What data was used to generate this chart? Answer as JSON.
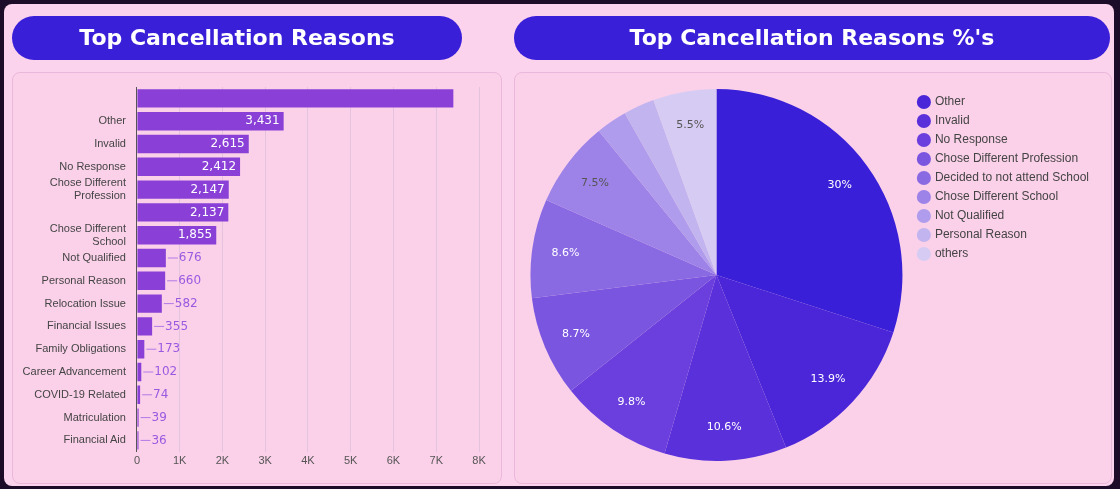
{
  "chart_data": [
    {
      "type": "bar",
      "title": "Top Cancellation Reasons",
      "orientation": "horizontal",
      "categories": [
        null,
        "Other",
        "Invalid",
        "No Response",
        "Chose Different Profession",
        null,
        "Chose Different School",
        "Not Qualified",
        "Personal Reason",
        "Relocation Issue",
        "Financial Issues",
        "Family Obligations",
        "Career Advancement",
        "COVID-19 Related",
        "Matriculation",
        "Financial Aid"
      ],
      "values": [
        7400,
        3431,
        2615,
        2412,
        2147,
        2137,
        1855,
        676,
        660,
        582,
        355,
        173,
        102,
        74,
        39,
        36
      ],
      "value_labels": [
        null,
        "3,431",
        "2,615",
        "2,412",
        "2,147",
        "2,137",
        "1,855",
        "676",
        "660",
        "582",
        "355",
        "173",
        "102",
        "74",
        "39",
        "36"
      ],
      "color": "#8a3fd6",
      "xlim": [
        0,
        8000
      ],
      "xticks": [
        0,
        {
          "value": 1000,
          "label": "1K"
        },
        {
          "value": 2000,
          "label": "2K"
        },
        {
          "value": 3000,
          "label": "3K"
        },
        {
          "value": 4000,
          "label": "4K"
        },
        {
          "value": 5000,
          "label": "5K"
        },
        {
          "value": 6000,
          "label": "6K"
        },
        {
          "value": 7000,
          "label": "7K"
        },
        {
          "value": 8000,
          "label": "8K"
        }
      ],
      "grid": "x",
      "legend": false
    },
    {
      "type": "pie",
      "title": "Top Cancellation Reasons %'s",
      "categories": [
        null,
        "Other",
        "Invalid",
        "No Response",
        "Chose Different Profession",
        "Decided to not attend School",
        "Chose Different School",
        "Not Qualified",
        "Personal Reason",
        "others"
      ],
      "values": [
        30,
        13.9,
        10.6,
        9.8,
        8.7,
        8.6,
        7.5,
        2.7,
        2.7,
        5.5
      ],
      "value_labels": [
        "30%",
        "13.9%",
        "10.6%",
        "9.8%",
        "8.7%",
        "8.6%",
        "7.5%",
        null,
        null,
        "5.5%"
      ],
      "colors": [
        "#3a1fd8",
        "#4a26d8",
        "#5a30da",
        "#6a3fdd",
        "#7a55e0",
        "#8a6ae3",
        "#9d82e8",
        "#b09cec",
        "#c2b5ef",
        "#d6ccf3"
      ],
      "legend": "right"
    }
  ]
}
